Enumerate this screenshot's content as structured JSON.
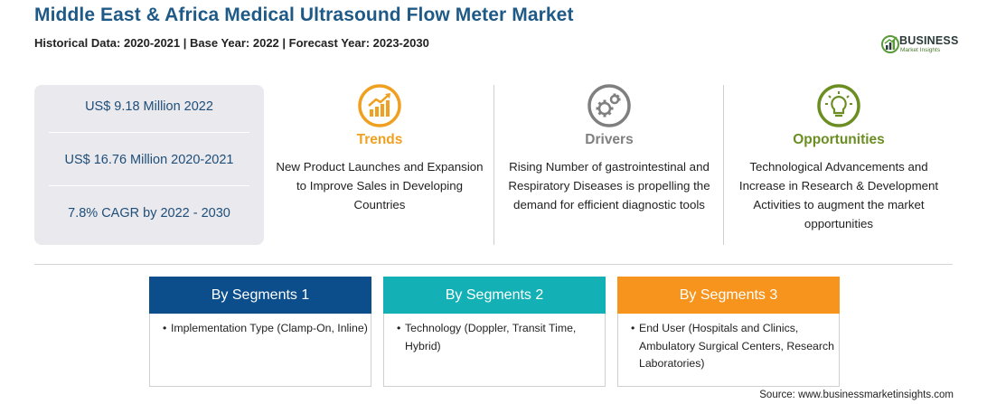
{
  "header": {
    "title": "Middle East & Africa Medical Ultrasound Flow Meter Market",
    "subtitle": "Historical Data: 2020-2021 | Base Year: 2022 | Forecast Year: 2023-2030"
  },
  "logo": {
    "word": "BUSINESS",
    "sub": "Market Insights",
    "colors": {
      "green": "#5a9a3a",
      "dark": "#2d3a3a"
    }
  },
  "stats": [
    "US$ 9.18 Million 2022",
    "US$ 16.76 Million 2020-2021",
    "7.8% CAGR by 2022 - 2030"
  ],
  "columns": [
    {
      "heading": "Trends",
      "text": "New Product Launches and Expansion to Improve Sales in Developing Countries",
      "icon": "trend-chart-icon",
      "color": "#f0a020"
    },
    {
      "heading": "Drivers",
      "text": "Rising Number of gastrointestinal and Respiratory Diseases is propelling the demand for efficient diagnostic tools",
      "icon": "gears-icon",
      "color": "#7f7f7f"
    },
    {
      "heading": "Opportunities",
      "text": "Technological Advancements and Increase in Research & Development Activities to augment the market opportunities",
      "icon": "lightbulb-icon",
      "color": "#6b8e23"
    }
  ],
  "segments": [
    {
      "title": "By Segments 1",
      "bullet": "•",
      "text": "Implementation Type (Clamp-On, Inline)",
      "color": "#0b4e8b"
    },
    {
      "title": "By Segments 2",
      "bullet": "•",
      "text": "Technology (Doppler, Transit Time, Hybrid)",
      "color": "#13b1b5"
    },
    {
      "title": "By Segments 3",
      "bullet": "•",
      "text": "End User (Hospitals and Clinics, Ambulatory Surgical Centers, Research Laboratories)",
      "color": "#f7941d"
    }
  ],
  "source": "Source: www.businessmarketinsights.com"
}
